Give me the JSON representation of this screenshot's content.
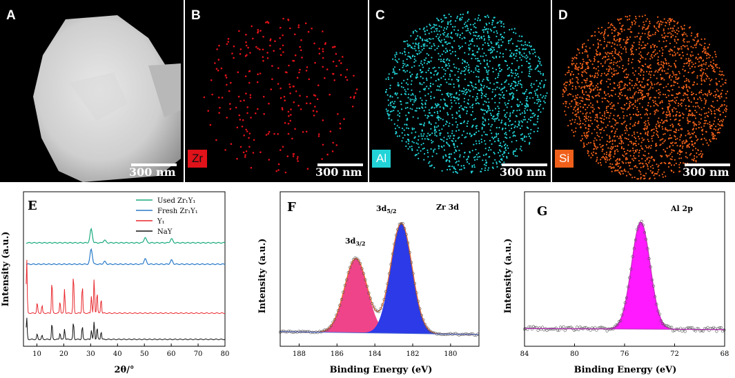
{
  "tem_panels": [
    {
      "label": "A",
      "element": "",
      "scale_bar": "300 nm"
    },
    {
      "label": "B",
      "element": "Zr",
      "scale_bar": "300 nm",
      "color": "#e0121a"
    },
    {
      "label": "C",
      "element": "Al",
      "scale_bar": "300 nm",
      "color": "#22d4d8"
    },
    {
      "label": "D",
      "element": "Si",
      "scale_bar": "300 nm",
      "color": "#f0601a"
    }
  ],
  "chart_data": [
    {
      "panel": "E",
      "type": "line",
      "xlabel": "2θ/°",
      "ylabel": "Intensity (a.u.)",
      "xlim": [
        5,
        80
      ],
      "xticks": [
        "10",
        "20",
        "30",
        "40",
        "50",
        "60",
        "70",
        "80"
      ],
      "legend": [
        "Used Zr₁Y₁",
        "Fresh Zr₁Y₁",
        "Y₁",
        "NaY"
      ],
      "series": [
        {
          "name": "Used Zr₁Y₁",
          "color": "#1aaa7e",
          "peaks_2theta": [
            30.2,
            35.2,
            50.3,
            60.1
          ]
        },
        {
          "name": "Fresh Zr₁Y₁",
          "color": "#2a7ac8",
          "peaks_2theta": [
            30.2,
            35.2,
            50.3,
            60.1
          ]
        },
        {
          "name": "Y₁",
          "color": "#e8262c",
          "peaks_2theta": [
            6.2,
            10.1,
            11.9,
            15.6,
            18.6,
            20.3,
            23.6,
            26.9,
            30.3,
            31.3,
            32.4,
            33.9
          ]
        },
        {
          "name": "NaY",
          "color": "#111111",
          "peaks_2theta": [
            6.2,
            10.1,
            11.9,
            15.6,
            18.6,
            20.3,
            23.6,
            26.9,
            30.3,
            31.3,
            32.4,
            33.9
          ]
        }
      ]
    },
    {
      "panel": "F",
      "type": "line",
      "title": "Zr 3d",
      "xlabel": "Binding Energy (eV)",
      "ylabel": "Intensity (a.u.)",
      "xlim": [
        189,
        178.5
      ],
      "xticks": [
        "188",
        "186",
        "184",
        "182",
        "180"
      ],
      "peaks": [
        {
          "name": "3d3/2",
          "label_main": "3d",
          "label_sub": "3/2",
          "center_ev": 185.0,
          "color": "#f0448a"
        },
        {
          "name": "3d5/2",
          "label_main": "3d",
          "label_sub": "5/2",
          "center_ev": 182.6,
          "color": "#2c3ae8"
        }
      ]
    },
    {
      "panel": "G",
      "type": "line",
      "title": "Al 2p",
      "xlabel": "Binding Energy (eV)",
      "ylabel": "Intensity (a.u.)",
      "xlim": [
        84,
        68
      ],
      "xticks": [
        "84",
        "80",
        "76",
        "72",
        "68"
      ],
      "peaks": [
        {
          "name": "Al 2p",
          "center_ev": 74.7,
          "color": "#ff1aff"
        }
      ]
    }
  ]
}
